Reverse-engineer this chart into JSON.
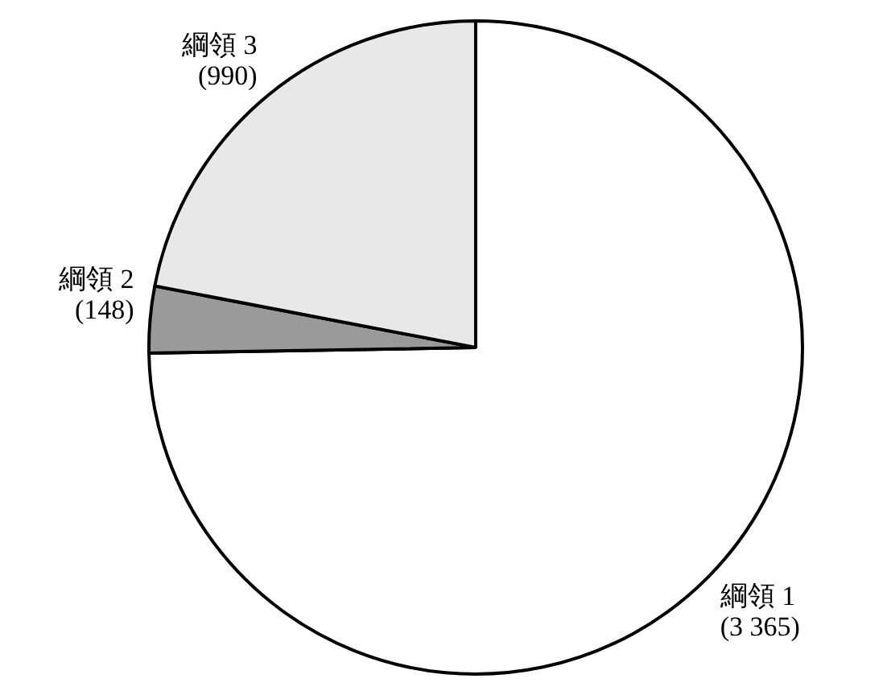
{
  "chart_data": {
    "type": "pie",
    "categories": [
      "綱領 1",
      "綱領 2",
      "綱領 3"
    ],
    "values": [
      3365,
      148,
      990
    ],
    "value_labels": [
      "(3 365)",
      "(148)",
      "(990)"
    ],
    "colors": [
      "#ffffff",
      "#9a9a9a",
      "#e8e8e8"
    ],
    "legend": false
  }
}
